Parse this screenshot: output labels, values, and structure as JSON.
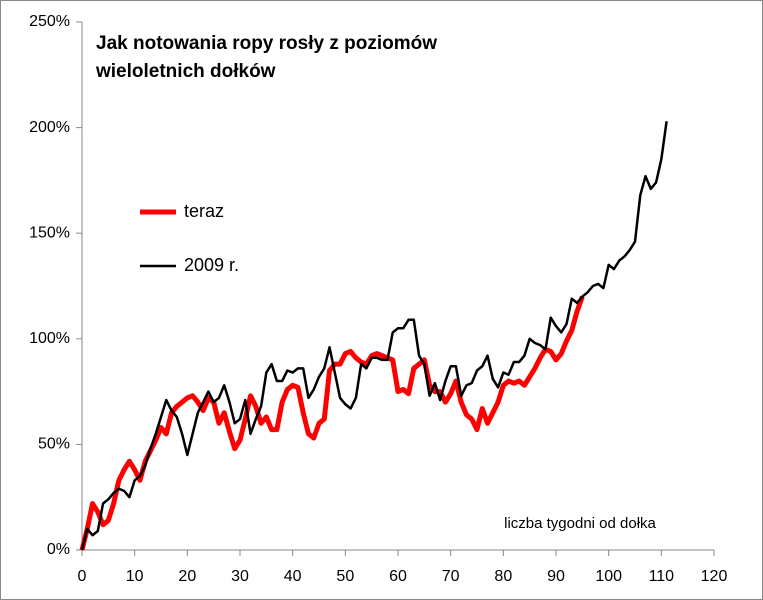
{
  "chart_data": {
    "type": "line",
    "title": "Jak notowania ropy rosły z poziomów wieloletnich dołków",
    "annotation": "liczba tygodni od dołka",
    "legend": "left",
    "x": [
      0,
      1,
      2,
      3,
      4,
      5,
      6,
      7,
      8,
      9,
      10,
      11,
      12,
      13,
      14,
      15,
      16,
      17,
      18,
      19,
      20,
      21,
      22,
      23,
      24,
      25,
      26,
      27,
      28,
      29,
      30,
      31,
      32,
      33,
      34,
      35,
      36,
      37,
      38,
      39,
      40,
      41,
      42,
      43,
      44,
      45,
      46,
      47,
      48,
      49,
      50,
      51,
      52,
      53,
      54,
      55,
      56,
      57,
      58,
      59,
      60,
      61,
      62,
      63,
      64,
      65,
      66,
      67,
      68,
      69,
      70,
      71,
      72,
      73,
      74,
      75,
      76,
      77,
      78,
      79,
      80,
      81,
      82,
      83,
      84,
      85,
      86,
      87,
      88,
      89,
      90,
      91,
      92,
      93,
      94,
      95,
      96,
      97,
      98,
      99,
      100,
      101,
      102,
      103,
      104,
      105,
      106,
      107,
      108,
      109,
      110,
      111
    ],
    "series": [
      {
        "name": "teraz",
        "color": "#ff0000",
        "width": 5,
        "values": [
          0,
          10,
          22,
          18,
          12,
          14,
          22,
          33,
          38,
          42,
          38,
          33,
          42,
          47,
          52,
          58,
          55,
          65,
          68,
          70,
          72,
          73,
          70,
          66,
          72,
          70,
          60,
          65,
          56,
          48,
          52,
          62,
          73,
          68,
          60,
          63,
          57,
          57,
          70,
          76,
          78,
          77,
          65,
          55,
          53,
          60,
          62,
          85,
          88,
          88,
          93,
          94,
          91,
          89,
          88,
          92,
          93,
          92,
          91,
          90,
          75,
          76,
          74,
          86,
          88,
          90,
          78,
          75,
          75,
          70,
          74,
          80,
          70,
          64,
          62,
          57,
          67,
          60,
          65,
          70,
          78,
          80,
          79,
          80,
          78,
          82,
          86,
          91,
          95,
          94,
          90,
          93,
          99,
          104,
          113,
          120,
          null,
          null,
          null,
          null,
          null,
          null,
          null,
          null,
          null,
          null,
          null,
          null,
          null,
          null,
          null,
          null
        ]
      },
      {
        "name": "2009 r.",
        "color": "#000000",
        "width": 2.5,
        "values": [
          0,
          10,
          7,
          9,
          22,
          24,
          27,
          29,
          28,
          25,
          33,
          35,
          40,
          48,
          55,
          63,
          71,
          66,
          63,
          55,
          45,
          55,
          65,
          70,
          75,
          70,
          72,
          78,
          70,
          60,
          62,
          71,
          55,
          62,
          68,
          84,
          88,
          80,
          80,
          85,
          84,
          86,
          86,
          72,
          76,
          82,
          86,
          96,
          84,
          72,
          69,
          67,
          72,
          88,
          86,
          91,
          91,
          90,
          90,
          103,
          105,
          105,
          109,
          109,
          92,
          88,
          73,
          79,
          71,
          80,
          87,
          87,
          73,
          78,
          79,
          85,
          87,
          92,
          81,
          77,
          84,
          83,
          89,
          89,
          92,
          100,
          98,
          97,
          95,
          110,
          106,
          103,
          107,
          119,
          117,
          120,
          122,
          125,
          126,
          124,
          135,
          133,
          137,
          139,
          142,
          146,
          168,
          177,
          171,
          174,
          185,
          203
        ]
      }
    ],
    "xlim": [
      0,
      120
    ],
    "xticks": [
      0,
      10,
      20,
      30,
      40,
      50,
      60,
      70,
      80,
      90,
      100,
      110,
      120
    ],
    "ylim": [
      0,
      250
    ],
    "yticks": [
      {
        "value": 0,
        "label": "0%"
      },
      {
        "value": 50,
        "label": "50%"
      },
      {
        "value": 100,
        "label": "100%"
      },
      {
        "value": 150,
        "label": "150%"
      },
      {
        "value": 200,
        "label": "200%"
      },
      {
        "value": 250,
        "label": "250%"
      }
    ],
    "grid": false
  }
}
